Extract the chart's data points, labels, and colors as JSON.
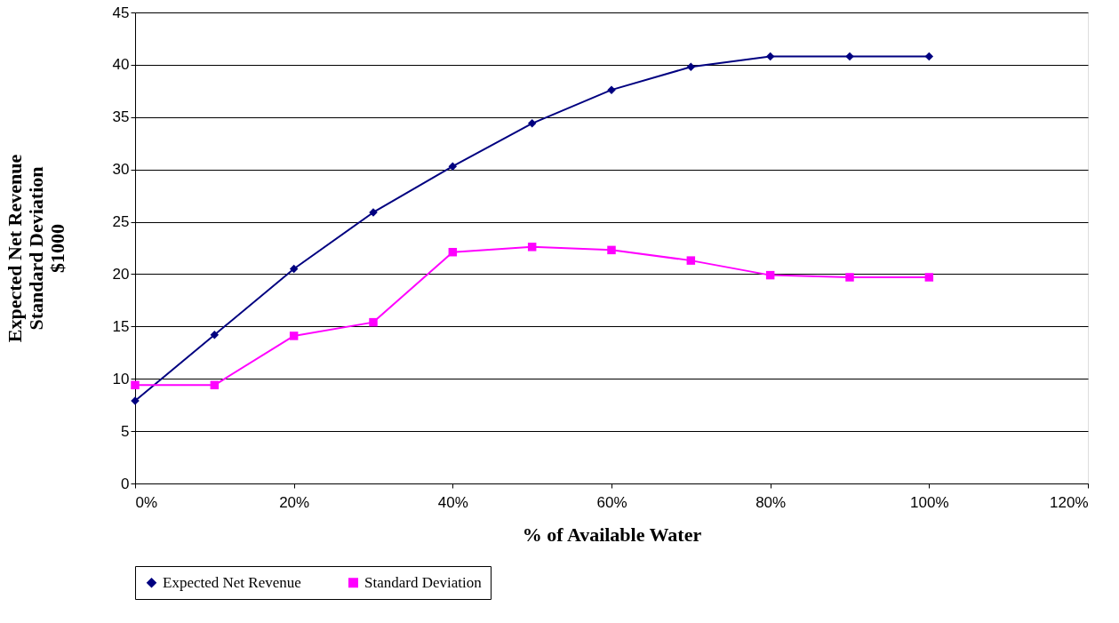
{
  "chart_data": {
    "type": "line",
    "xlabel": "% of Available Water",
    "ylabel": "Expected Net Revenue\nStandard Deviation\n$1000",
    "x": [
      0,
      10,
      20,
      30,
      40,
      50,
      60,
      70,
      80,
      90,
      100
    ],
    "series": [
      {
        "name": "Expected Net Revenue",
        "color": "#000080",
        "marker": "diamond",
        "values": [
          7.9,
          14.2,
          20.5,
          25.9,
          30.3,
          34.4,
          37.6,
          39.8,
          40.8,
          40.8,
          40.8
        ]
      },
      {
        "name": "Standard Deviation",
        "color": "#ff00ff",
        "marker": "square",
        "values": [
          9.4,
          9.4,
          14.1,
          15.4,
          22.1,
          22.6,
          22.3,
          21.3,
          19.9,
          19.7,
          19.7
        ]
      }
    ],
    "xlim": [
      0,
      120
    ],
    "xticks": [
      {
        "value": 0,
        "label": "0%"
      },
      {
        "value": 20,
        "label": "20%"
      },
      {
        "value": 40,
        "label": "40%"
      },
      {
        "value": 60,
        "label": "60%"
      },
      {
        "value": 80,
        "label": "80%"
      },
      {
        "value": 100,
        "label": "100%"
      },
      {
        "value": 120,
        "label": "120%"
      }
    ],
    "ylim": [
      0,
      45
    ],
    "yticks": [
      0,
      5,
      10,
      15,
      20,
      25,
      30,
      35,
      40,
      45
    ],
    "grid": "y",
    "legend": "bottom",
    "line_style": "solid"
  }
}
